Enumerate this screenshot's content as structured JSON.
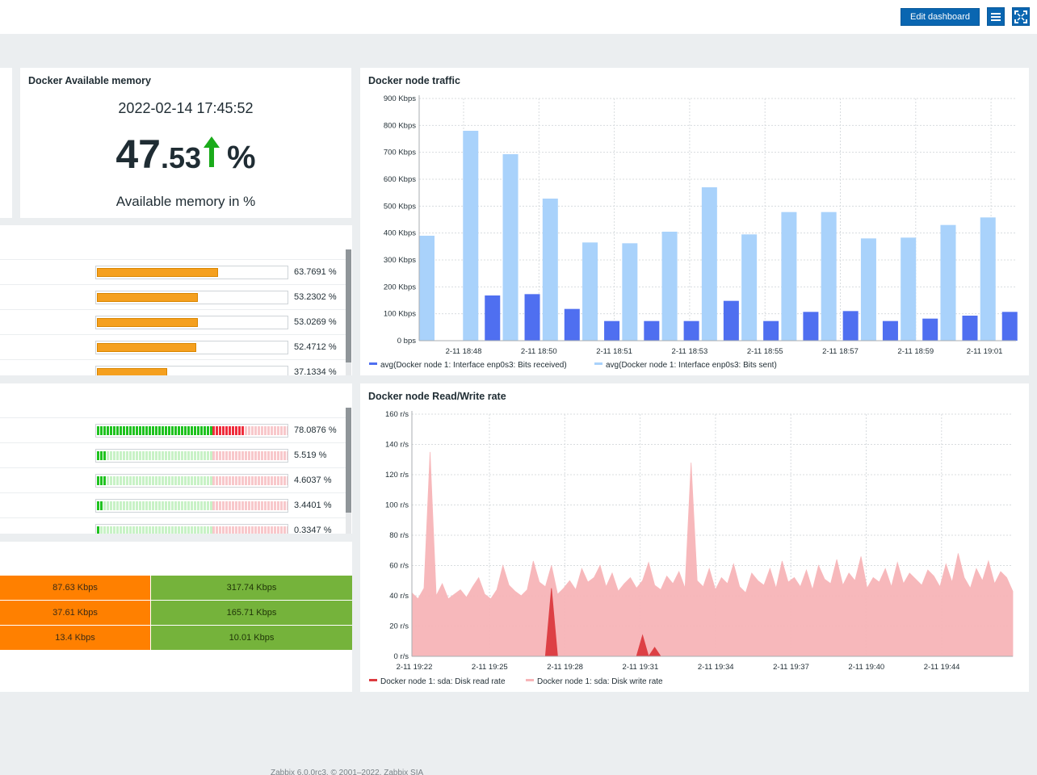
{
  "header": {
    "edit_label": "Edit dashboard",
    "menu_icon": "menu-icon",
    "kiosk_icon": "fullscreen-icon"
  },
  "memory_widget": {
    "title": "Docker Available memory",
    "timestamp": "2022-02-14 17:45:52",
    "value_int": "47",
    "value_dec": ".53",
    "units": "%",
    "trend": "up",
    "description": "Available memory in %"
  },
  "top_hosts_1": {
    "rows": [
      {
        "value": "63.7691 %",
        "fraction": 0.637691
      },
      {
        "value": "53.2302 %",
        "fraction": 0.532302
      },
      {
        "value": "53.0269 %",
        "fraction": 0.530269
      },
      {
        "value": "52.4712 %",
        "fraction": 0.524712
      },
      {
        "value": "37.1334 %",
        "fraction": 0.371334
      }
    ]
  },
  "top_hosts_2": {
    "rows": [
      {
        "value": "78.0876 %",
        "fraction": 0.780876
      },
      {
        "value": "5.519 %",
        "fraction": 0.05519
      },
      {
        "value": "4.6037 %",
        "fraction": 0.046037
      },
      {
        "value": "3.4401 %",
        "fraction": 0.034401
      },
      {
        "value": "0.3347 %",
        "fraction": 0.003347
      }
    ]
  },
  "net_table": {
    "rows": [
      {
        "in": "87.63 Kbps",
        "out": "317.74 Kbps"
      },
      {
        "in": "37.61 Kbps",
        "out": "165.71 Kbps"
      },
      {
        "in": "13.4 Kbps",
        "out": "10.01 Kbps"
      }
    ]
  },
  "traffic_widget": {
    "title": "Docker node traffic"
  },
  "rw_widget": {
    "title": "Docker node Read/Write rate"
  },
  "chart_data": [
    {
      "type": "bar",
      "title": "Docker node traffic",
      "unit": "Kbps",
      "ylim": [
        0,
        900
      ],
      "y_ticks": [
        {
          "value": 0,
          "label": "0 bps"
        },
        {
          "value": 100,
          "label": "100 Kbps"
        },
        {
          "value": 200,
          "label": "200 Kbps"
        },
        {
          "value": 300,
          "label": "300 Kbps"
        },
        {
          "value": 400,
          "label": "400 Kbps"
        },
        {
          "value": 500,
          "label": "500 Kbps"
        },
        {
          "value": 600,
          "label": "600 Kbps"
        },
        {
          "value": 700,
          "label": "700 Kbps"
        },
        {
          "value": 800,
          "label": "800 Kbps"
        },
        {
          "value": 900,
          "label": "900 Kbps"
        }
      ],
      "x_tick_labels": [
        "2-11 18:48",
        "2-11 18:50",
        "2-11 18:51",
        "2-11 18:53",
        "2-11 18:55",
        "2-11 18:57",
        "2-11 18:59",
        "2-11 19:01"
      ],
      "series": [
        {
          "name": "avg(Docker node 1: Interface enp0s3: Bits received)",
          "color": "#4f6ff0",
          "values": [
            0,
            168,
            173,
            118,
            73,
            73,
            73,
            148,
            73,
            107,
            110,
            73,
            82,
            93,
            107
          ]
        },
        {
          "name": "avg(Docker node 1: Interface enp0s3: Bits sent)",
          "color": "#a9d2fb",
          "values": [
            390,
            780,
            693,
            528,
            365,
            362,
            405,
            570,
            395,
            478,
            478,
            380,
            383,
            430,
            458
          ]
        }
      ],
      "grid": true,
      "legend": "bottom"
    },
    {
      "type": "area",
      "title": "Docker node Read/Write rate",
      "unit": "r/s",
      "ylim": [
        0,
        160
      ],
      "y_ticks": [
        {
          "value": 0,
          "label": "0 r/s"
        },
        {
          "value": 20,
          "label": "20 r/s"
        },
        {
          "value": 40,
          "label": "40 r/s"
        },
        {
          "value": 60,
          "label": "60 r/s"
        },
        {
          "value": 80,
          "label": "80 r/s"
        },
        {
          "value": 100,
          "label": "100 r/s"
        },
        {
          "value": 120,
          "label": "120 r/s"
        },
        {
          "value": 140,
          "label": "140 r/s"
        },
        {
          "value": 160,
          "label": "160 r/s"
        }
      ],
      "x_tick_labels": [
        "2-11 19:22",
        "2-11 19:25",
        "2-11 19:28",
        "2-11 19:31",
        "2-11 19:34",
        "2-11 19:37",
        "2-11 19:40",
        "2-11 19:44"
      ],
      "series": [
        {
          "name": "Docker node 1: sda: Disk read rate",
          "color": "#dc3a3f",
          "values": [
            0,
            0,
            0,
            0,
            0,
            0,
            0,
            0,
            0,
            0,
            0,
            0,
            0,
            0,
            0,
            0,
            0,
            0,
            0,
            0,
            0,
            0,
            0,
            45,
            0,
            0,
            0,
            0,
            0,
            0,
            0,
            0,
            0,
            0,
            0,
            0,
            0,
            0,
            14,
            0,
            6,
            0,
            0,
            0,
            0,
            0,
            0,
            0,
            0,
            0,
            0,
            0,
            0,
            0,
            0,
            0,
            0,
            0,
            0,
            0,
            0,
            0,
            0,
            0,
            0,
            0,
            0,
            0,
            0,
            0,
            0,
            0,
            0,
            0,
            0,
            0,
            0,
            0,
            0,
            0,
            0,
            0,
            0,
            0,
            0,
            0,
            0,
            0,
            0,
            0,
            0,
            0,
            0,
            0,
            0,
            0,
            0,
            0,
            0,
            0
          ]
        },
        {
          "name": "Docker node 1: sda: Disk write rate",
          "color": "#f7b5b8",
          "values": [
            42,
            38,
            45,
            135,
            40,
            48,
            38,
            41,
            44,
            39,
            46,
            52,
            41,
            38,
            44,
            60,
            47,
            43,
            40,
            44,
            63,
            49,
            46,
            60,
            41,
            45,
            50,
            44,
            58,
            49,
            52,
            60,
            46,
            55,
            43,
            48,
            52,
            45,
            50,
            62,
            47,
            44,
            53,
            48,
            56,
            45,
            128,
            50,
            46,
            58,
            44,
            52,
            48,
            61,
            46,
            42,
            55,
            50,
            47,
            58,
            45,
            63,
            49,
            52,
            46,
            57,
            44,
            60,
            51,
            48,
            64,
            47,
            55,
            50,
            66,
            45,
            52,
            49,
            58,
            46,
            62,
            48,
            55,
            51,
            47,
            57,
            53,
            46,
            61,
            49,
            68,
            52,
            45,
            58,
            50,
            63,
            48,
            56,
            52,
            43
          ]
        }
      ],
      "grid": true,
      "legend": "bottom"
    }
  ],
  "footer": {
    "text": "Zabbix 6.0.0rc3. © 2001–2022, Zabbix SIA"
  }
}
